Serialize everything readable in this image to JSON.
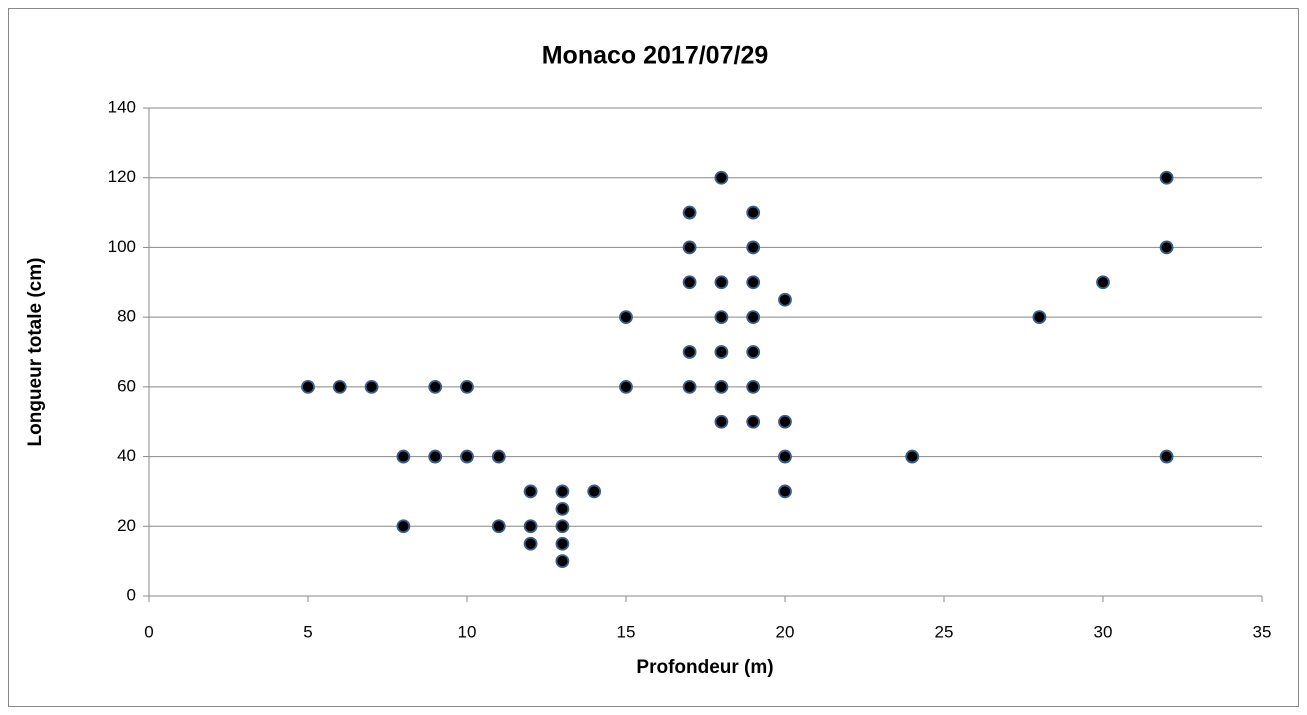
{
  "chart_data": {
    "type": "scatter",
    "title": "Monaco 2017/07/29",
    "x_label": "Profondeur (m)",
    "y_label": "Longueur totale  (cm)",
    "x": [
      5,
      6,
      7,
      9,
      10,
      8,
      9,
      10,
      11,
      8,
      11,
      12,
      12,
      12,
      13,
      13,
      13,
      13,
      13,
      14,
      15,
      15,
      17,
      17,
      17,
      17,
      17,
      18,
      18,
      18,
      18,
      18,
      18,
      19,
      19,
      19,
      19,
      19,
      19,
      19,
      20,
      20,
      20,
      20,
      24,
      28,
      30,
      32,
      32,
      32
    ],
    "y": [
      60,
      60,
      60,
      60,
      60,
      40,
      40,
      40,
      40,
      20,
      20,
      30,
      20,
      15,
      30,
      25,
      20,
      15,
      10,
      30,
      80,
      60,
      110,
      100,
      90,
      70,
      60,
      120,
      90,
      80,
      70,
      60,
      50,
      110,
      100,
      90,
      80,
      70,
      60,
      50,
      85,
      50,
      40,
      30,
      40,
      80,
      90,
      120,
      100,
      40
    ],
    "xlim": [
      0,
      35
    ],
    "ylim": [
      0,
      140
    ],
    "xticks": [
      0,
      5,
      10,
      15,
      20,
      25,
      30,
      35
    ],
    "yticks": [
      0,
      20,
      40,
      60,
      80,
      100,
      120,
      140
    ],
    "color": "#000000",
    "marker_edge_color": "#3a5f8f",
    "grid": true
  }
}
